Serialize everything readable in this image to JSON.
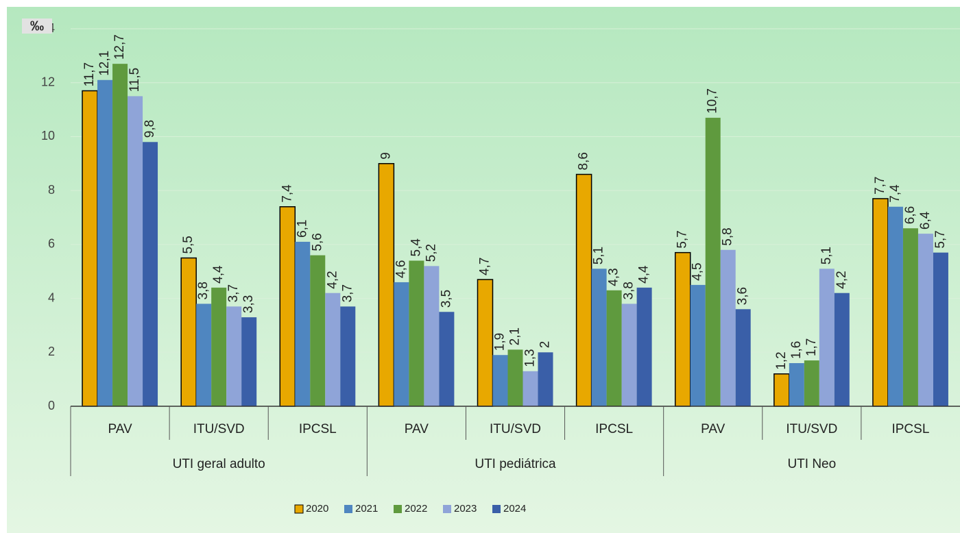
{
  "chart_data": {
    "type": "bar",
    "y_label": "‰",
    "categories": [
      "PAV",
      "ITU/SVD",
      "IPCSL",
      "PAV",
      "ITU/SVD",
      "IPCSL",
      "PAV",
      "ITU/SVD",
      "IPCSL"
    ],
    "groups": [
      "UTI geral adulto",
      "UTI pediátrica",
      "UTI Neo"
    ],
    "series": [
      {
        "name": "2020",
        "color": "#e8a800",
        "values": [
          11.7,
          5.5,
          7.4,
          9,
          4.7,
          8.6,
          5.7,
          1.2,
          7.7
        ],
        "value_labels": [
          "11,7",
          "5,5",
          "7,4",
          "9",
          "4,7",
          "8,6",
          "5,7",
          "1,2",
          "7,7"
        ]
      },
      {
        "name": "2021",
        "color": "#4f86c0",
        "values": [
          12.1,
          3.8,
          6.1,
          4.6,
          1.9,
          5.1,
          4.5,
          1.6,
          7.4
        ],
        "value_labels": [
          "12,1",
          "3,8",
          "6,1",
          "4,6",
          "1,9",
          "5,1",
          "4,5",
          "1,6",
          "7,4"
        ]
      },
      {
        "name": "2022",
        "color": "#5f9a3e",
        "values": [
          12.7,
          4.4,
          5.6,
          5.4,
          2.1,
          4.3,
          10.7,
          1.7,
          6.6
        ],
        "value_labels": [
          "12,7",
          "4,4",
          "5,6",
          "5,4",
          "2,1",
          "4,3",
          "10,7",
          "1,7",
          "6,6"
        ]
      },
      {
        "name": "2023",
        "color": "#8fa4d8",
        "values": [
          11.5,
          3.7,
          4.2,
          5.2,
          1.3,
          3.8,
          5.8,
          5.1,
          6.4
        ],
        "value_labels": [
          "11,5",
          "3,7",
          "4,2",
          "5,2",
          "1,3",
          "3,8",
          "5,8",
          "5,1",
          "6,4"
        ]
      },
      {
        "name": "2024",
        "color": "#3a5fa8",
        "values": [
          9.8,
          3.3,
          3.7,
          3.5,
          2,
          4.4,
          3.6,
          4.2,
          5.7
        ],
        "value_labels": [
          "9,8",
          "3,3",
          "3,7",
          "3,5",
          "2",
          "4,4",
          "3,6",
          "4,2",
          "5,7"
        ]
      }
    ],
    "ylim": [
      0,
      14
    ],
    "yticks": [
      0,
      2,
      4,
      6,
      8,
      10,
      12,
      14
    ],
    "grid": true,
    "legend": "bottom"
  }
}
